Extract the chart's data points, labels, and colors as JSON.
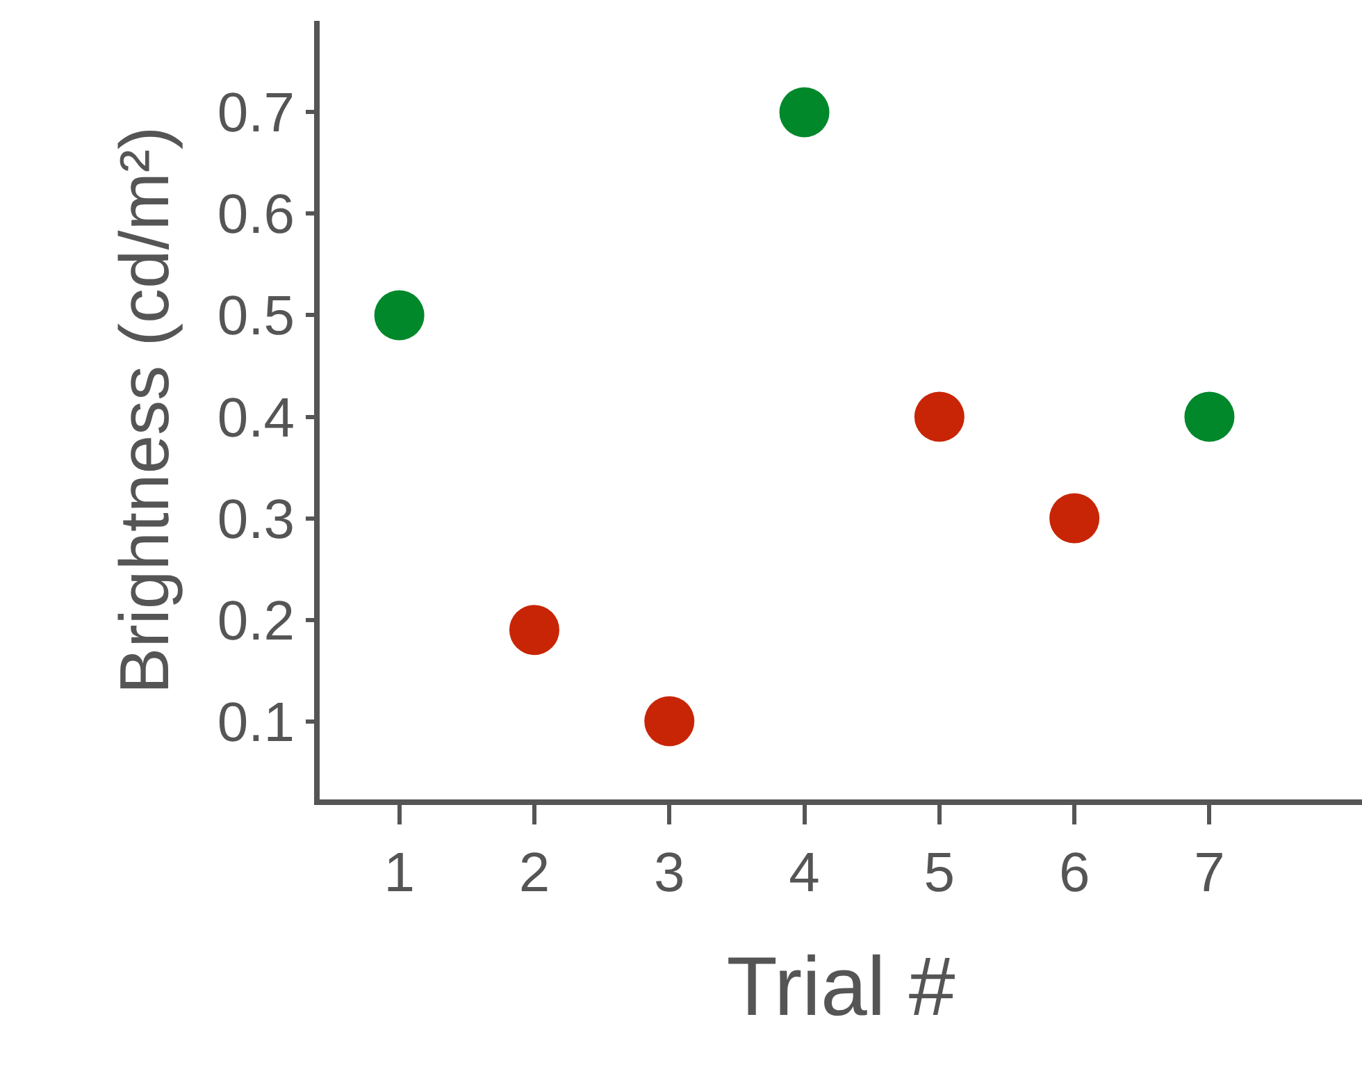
{
  "chart_data": {
    "type": "scatter",
    "xlabel": "Trial #",
    "ylabel": "Brightness (cd/m²)",
    "x": [
      1,
      2,
      3,
      4,
      5,
      6,
      7
    ],
    "values": [
      0.5,
      0.19,
      0.1,
      0.7,
      0.4,
      0.3,
      0.4
    ],
    "colors": [
      "#00882b",
      "#c82506",
      "#c82506",
      "#00882b",
      "#c82506",
      "#c82506",
      "#00882b"
    ],
    "xlim": [
      0.41,
      8.13
    ],
    "xticks": [
      1,
      2,
      3,
      4,
      5,
      6,
      7
    ],
    "ylim": [
      0.023,
      0.79
    ],
    "yticks": [
      0.1,
      0.2,
      0.3,
      0.4,
      0.5,
      0.6,
      0.7
    ],
    "marker": "circle"
  }
}
